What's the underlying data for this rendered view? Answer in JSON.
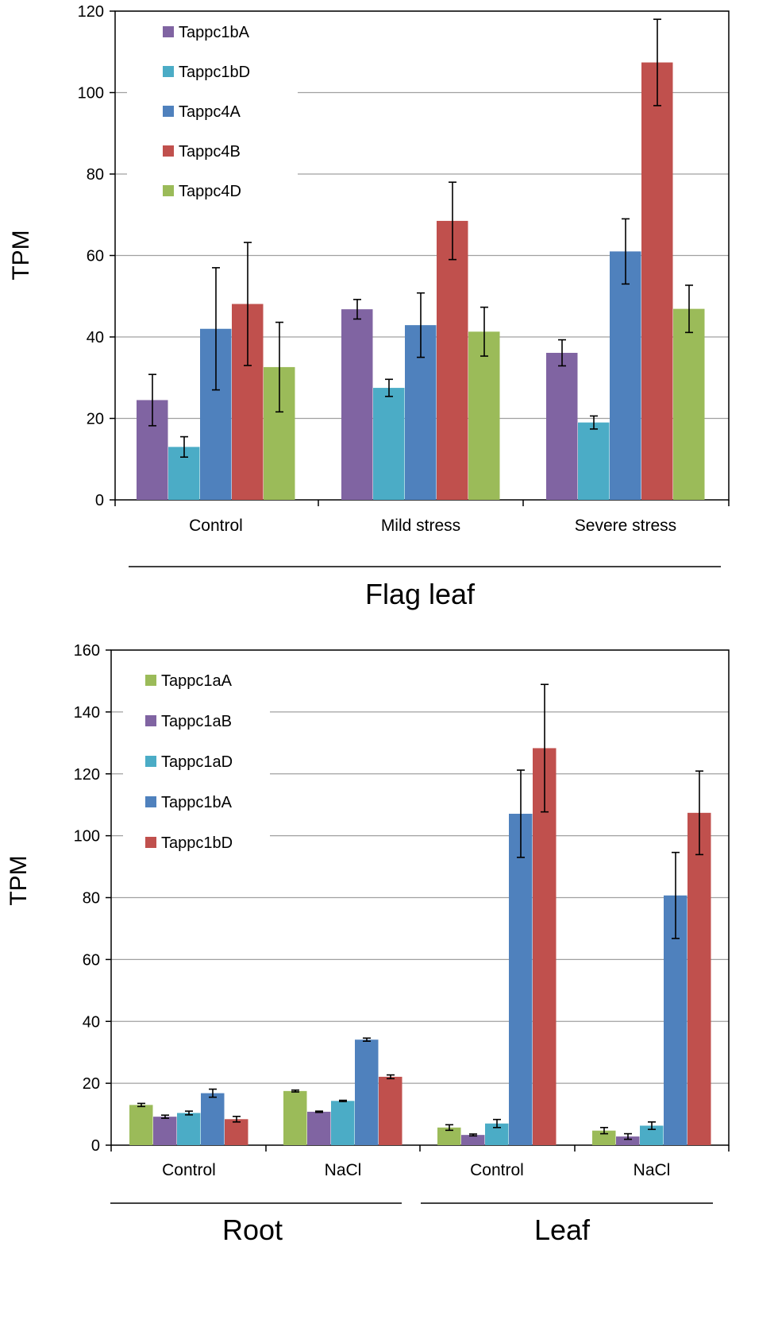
{
  "chart_data": [
    {
      "type": "bar",
      "ylabel": "TPM",
      "ylim": [
        0,
        120
      ],
      "yticks": [
        "0",
        "20",
        "40",
        "60",
        "80",
        "100",
        "120"
      ],
      "categories": [
        "Control",
        "Mild stress",
        "Severe stress"
      ],
      "group_labels": [
        {
          "label": "Flag leaf"
        }
      ],
      "grid": true,
      "legend_position": "top-left",
      "series": [
        {
          "name": "Tappc1bA",
          "color": "#8064A2",
          "values": [
            24.5,
            46.8,
            36.1
          ],
          "errors": [
            6.3,
            2.4,
            3.2
          ]
        },
        {
          "name": "Tappc1bD",
          "color": "#4BACC6",
          "values": [
            13.0,
            27.5,
            19.0
          ],
          "errors": [
            2.5,
            2.1,
            1.6
          ]
        },
        {
          "name": "Tappc4A",
          "color": "#4F81BD",
          "values": [
            42.0,
            42.9,
            61.0
          ],
          "errors": [
            15.0,
            7.9,
            8.0
          ]
        },
        {
          "name": "Tappc4B",
          "color": "#C0504D",
          "values": [
            48.1,
            68.5,
            107.4
          ],
          "errors": [
            15.1,
            9.5,
            10.6
          ]
        },
        {
          "name": "Tappc4D",
          "color": "#9BBB59",
          "values": [
            32.6,
            41.3,
            46.9
          ],
          "errors": [
            11.0,
            6.0,
            5.8
          ]
        }
      ]
    },
    {
      "type": "bar",
      "ylabel": "TPM",
      "ylim": [
        0,
        160
      ],
      "yticks": [
        "0",
        "20",
        "40",
        "60",
        "80",
        "100",
        "120",
        "140",
        "160"
      ],
      "categories": [
        "Control",
        "NaCl",
        "Control",
        "NaCl"
      ],
      "group_labels": [
        {
          "label": "Root"
        },
        {
          "label": "Leaf"
        }
      ],
      "grid": true,
      "legend_position": "top-left",
      "series": [
        {
          "name": "Tappc1aA",
          "color": "#9BBB59",
          "values": [
            13.0,
            17.5,
            5.7,
            4.7
          ],
          "errors": [
            0.5,
            0.3,
            0.9,
            1.0
          ]
        },
        {
          "name": "Tappc1aB",
          "color": "#8064A2",
          "values": [
            9.2,
            10.8,
            3.3,
            2.8
          ],
          "errors": [
            0.5,
            0.2,
            0.3,
            0.9
          ]
        },
        {
          "name": "Tappc1aD",
          "color": "#4BACC6",
          "values": [
            10.4,
            14.3,
            7.0,
            6.3
          ],
          "errors": [
            0.6,
            0.2,
            1.3,
            1.2
          ]
        },
        {
          "name": "Tappc1bA",
          "color": "#4F81BD",
          "values": [
            16.8,
            34.1,
            107.1,
            80.7
          ],
          "errors": [
            1.3,
            0.5,
            14.1,
            13.9
          ]
        },
        {
          "name": "Tappc1bD",
          "color": "#C0504D",
          "values": [
            8.4,
            22.1,
            128.3,
            107.4
          ],
          "errors": [
            0.9,
            0.6,
            20.6,
            13.5
          ]
        }
      ]
    }
  ]
}
